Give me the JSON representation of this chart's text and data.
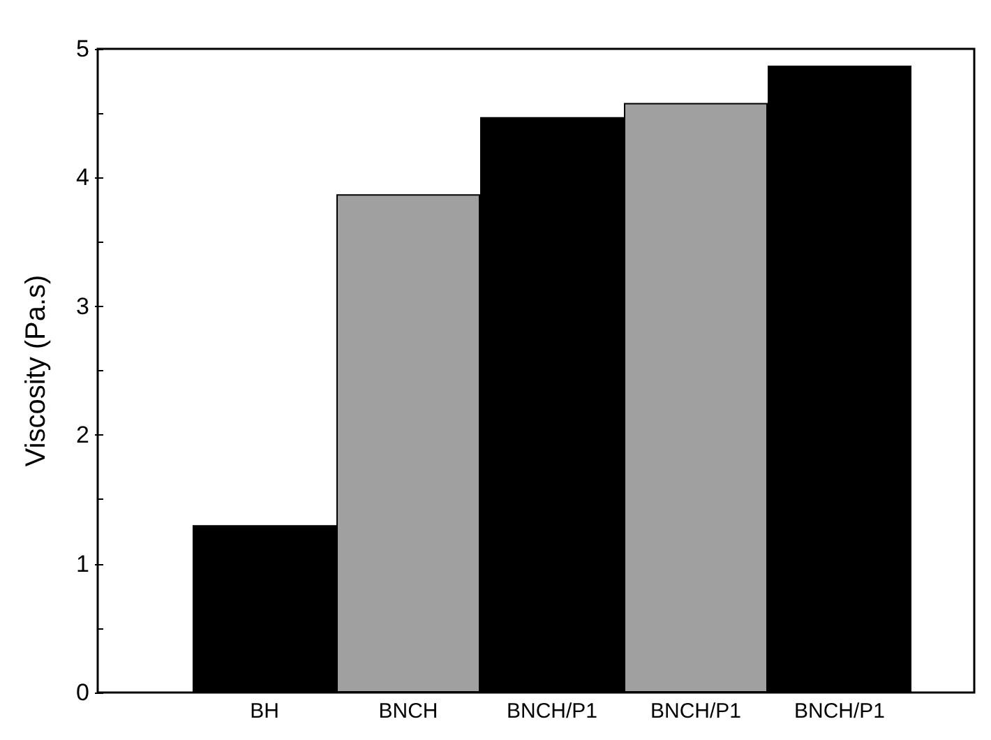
{
  "chart_data": {
    "type": "bar",
    "ylabel": "Viscosity (Pa.s)",
    "categories": [
      "BH",
      "BNCH",
      "BNCH/P1",
      "BNCH/P1",
      "BNCH/P1"
    ],
    "values": [
      1.3,
      3.87,
      4.47,
      4.58,
      4.87
    ],
    "colors": [
      "#000000",
      "#a0a0a0",
      "#000000",
      "#a0a0a0",
      "#000000"
    ],
    "ylim": [
      0,
      5
    ],
    "yticks": [
      0,
      1,
      2,
      3,
      4,
      5
    ],
    "grid": false
  }
}
